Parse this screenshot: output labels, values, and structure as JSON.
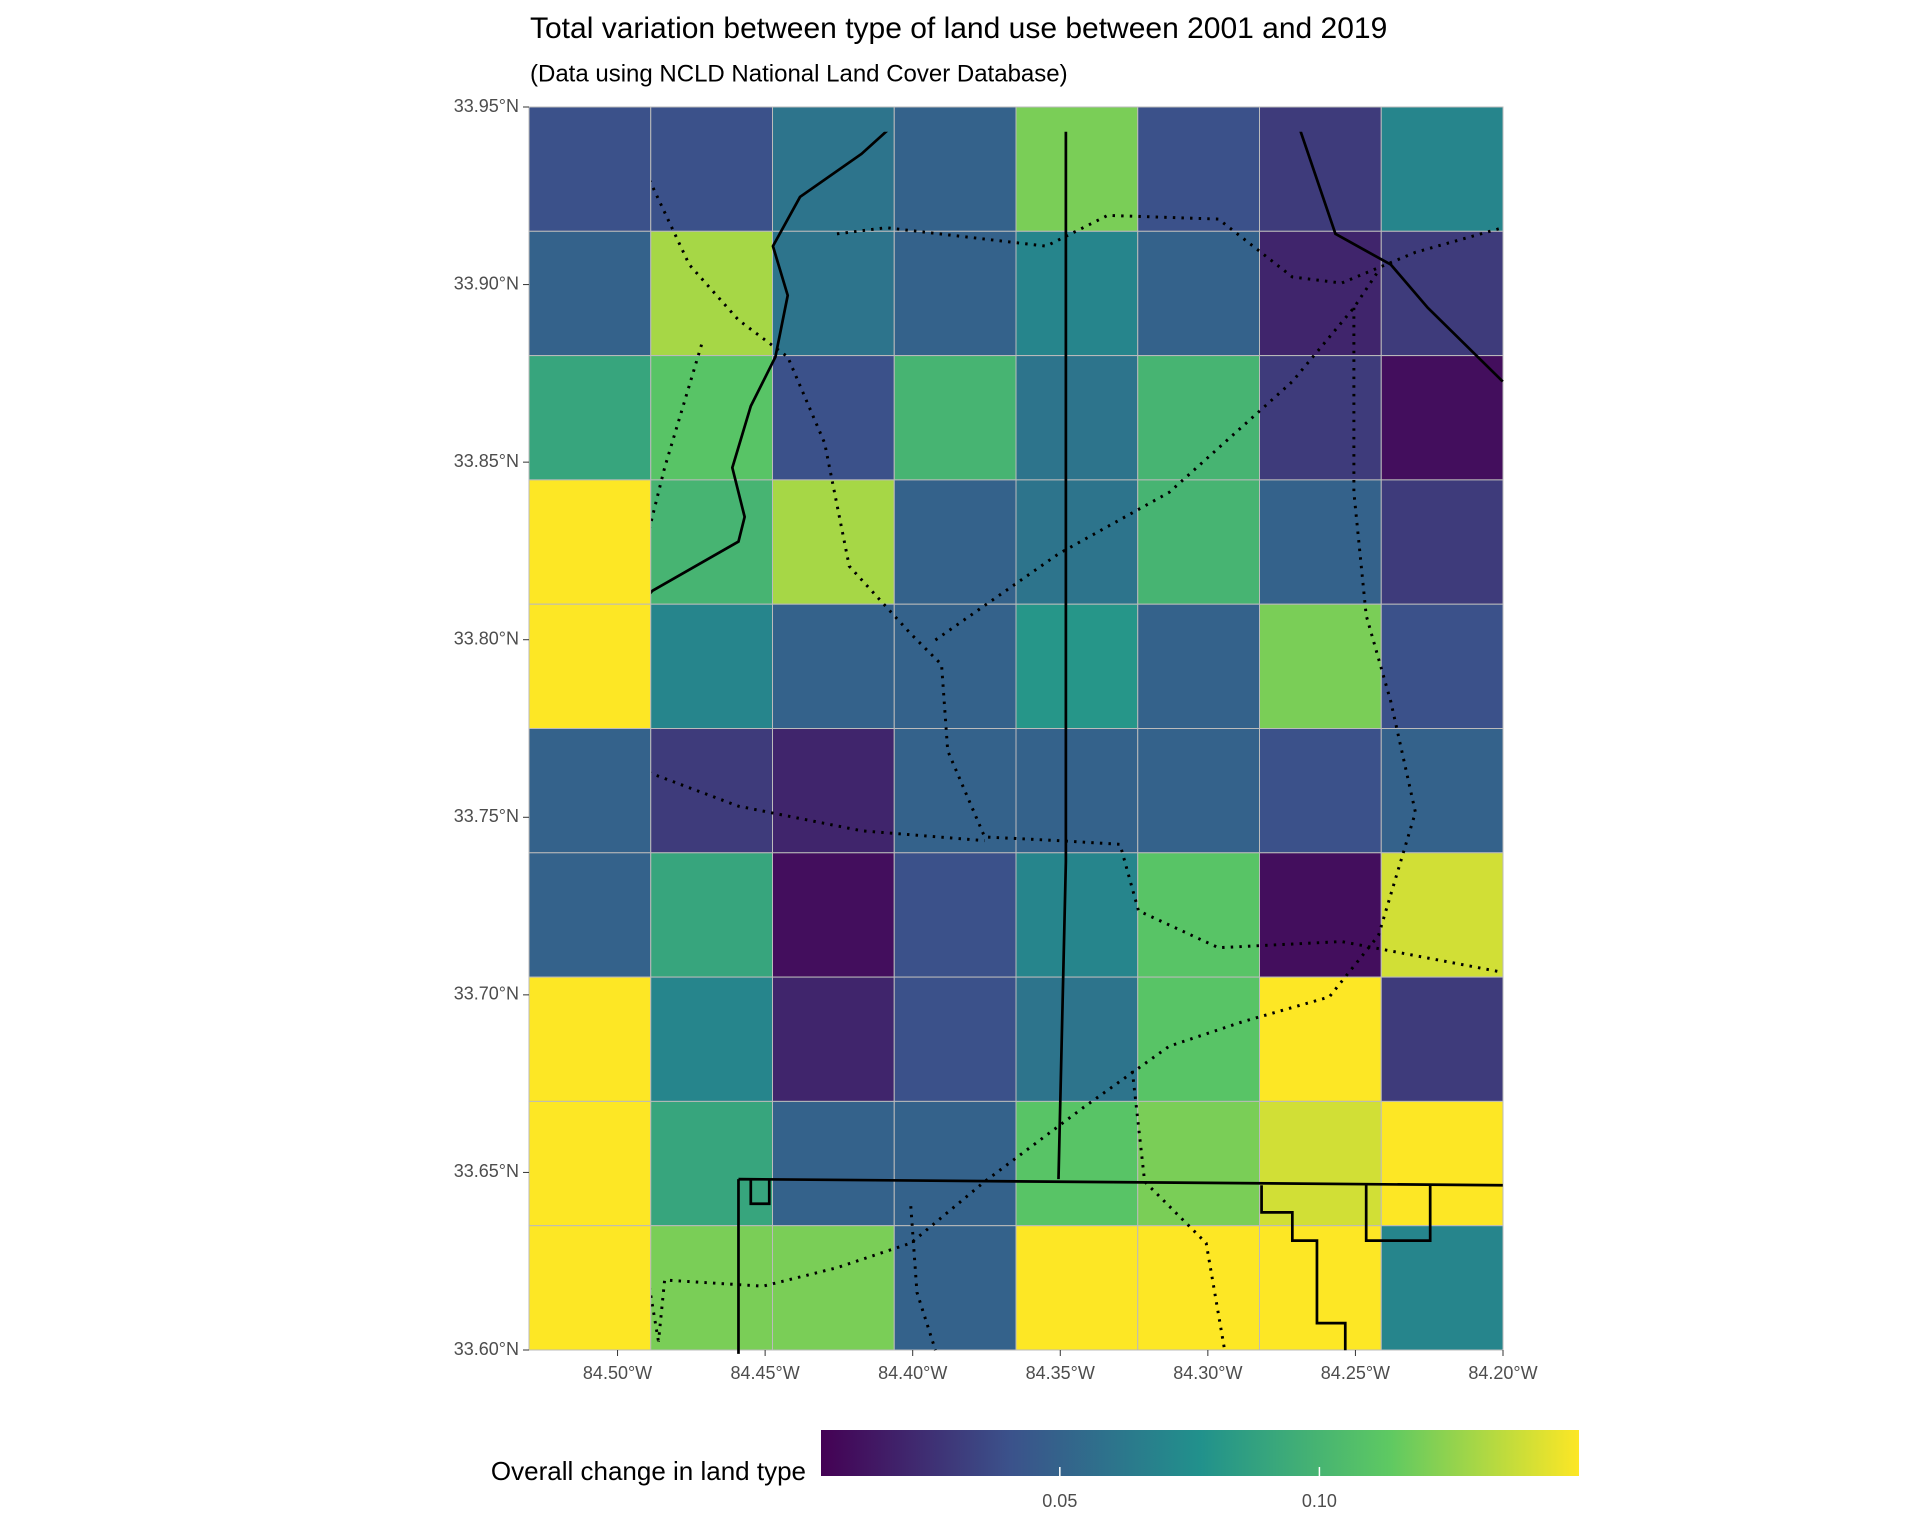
{
  "chart_data": {
    "type": "choropleth",
    "title": "Total variation between type of land use between 2001 and 2019",
    "subtitle": "(Data using NCLD National Land Cover Database)",
    "xlim": [
      -84.53,
      -84.2
    ],
    "ylim": [
      33.6,
      33.95
    ],
    "xticks": [
      {
        "value": -84.5,
        "label": "84.50°W"
      },
      {
        "value": -84.45,
        "label": "84.45°W"
      },
      {
        "value": -84.4,
        "label": "84.40°W"
      },
      {
        "value": -84.35,
        "label": "84.35°W"
      },
      {
        "value": -84.3,
        "label": "84.30°W"
      },
      {
        "value": -84.25,
        "label": "84.25°W"
      },
      {
        "value": -84.2,
        "label": "84.20°W"
      }
    ],
    "yticks": [
      {
        "value": 33.6,
        "label": "33.60°N"
      },
      {
        "value": 33.65,
        "label": "33.65°N"
      },
      {
        "value": 33.7,
        "label": "33.70°N"
      },
      {
        "value": 33.75,
        "label": "33.75°N"
      },
      {
        "value": 33.8,
        "label": "33.80°N"
      },
      {
        "value": 33.85,
        "label": "33.85°N"
      },
      {
        "value": 33.9,
        "label": "33.90°N"
      },
      {
        "value": 33.95,
        "label": "33.95°N"
      }
    ],
    "legend_title": "Overall change in land type",
    "colorbar_lim": [
      0.004,
      0.15
    ],
    "colorbar_ticks": [
      0.05,
      {
        "value": 0.1,
        "label": "0.10"
      }
    ],
    "grid_values": [
      [
        0.04,
        0.04,
        0.06,
        0.05,
        0.12,
        0.04,
        0.03,
        0.07
      ],
      [
        0.05,
        0.13,
        0.06,
        0.05,
        0.07,
        0.05,
        0.02,
        0.03
      ],
      [
        0.09,
        0.11,
        0.04,
        0.1,
        0.06,
        0.1,
        0.03,
        0.01
      ],
      [
        0.15,
        0.1,
        0.13,
        0.05,
        0.06,
        0.1,
        0.05,
        0.03
      ],
      [
        0.15,
        0.07,
        0.05,
        0.05,
        0.08,
        0.05,
        0.12,
        0.04
      ],
      [
        0.05,
        0.03,
        0.02,
        0.05,
        0.05,
        0.05,
        0.04,
        0.05
      ],
      [
        0.05,
        0.09,
        0.01,
        0.04,
        0.07,
        0.11,
        0.01,
        0.14
      ],
      [
        0.15,
        0.07,
        0.02,
        0.04,
        0.06,
        0.11,
        0.15,
        0.03
      ],
      [
        0.15,
        0.09,
        0.05,
        0.05,
        0.11,
        0.12,
        0.14,
        0.15
      ],
      [
        0.15,
        0.12,
        0.12,
        0.05,
        0.15,
        0.15,
        0.15,
        0.07
      ]
    ]
  }
}
